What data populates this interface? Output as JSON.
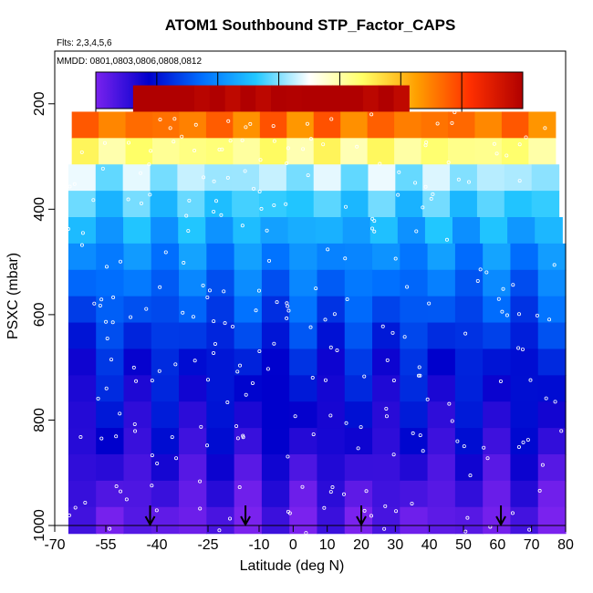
{
  "chart_data": {
    "type": "heatmap",
    "title": "ATOM1 Southbound STP_Factor_CAPS",
    "notes": [
      "Flts: 2,3,4,5,6",
      "MMDD: 0801,0803,0806,0808,0812"
    ],
    "xlabel": "Latitude (deg N)",
    "ylabel": "PSXC (mbar)",
    "xlim": [
      -70,
      80
    ],
    "ylim": [
      1000,
      100
    ],
    "x_ticks": [
      -70,
      -55,
      -40,
      -25,
      -10,
      0,
      10,
      20,
      30,
      40,
      50,
      60,
      70,
      80
    ],
    "y_ticks": [
      200,
      400,
      600,
      800,
      1000
    ],
    "colorbar": {
      "range": [
        1.0,
        4.0
      ],
      "ticks": [
        "1.0",
        "1.5",
        "2.0",
        "2.5",
        "3.0",
        "3.5",
        "4.0"
      ],
      "colors": [
        "#7a22ee",
        "#0000cc",
        "#0070ff",
        "#22c8ff",
        "#ffffff",
        "#ffff66",
        "#ffa000",
        "#ff3000",
        "#b00000"
      ]
    },
    "pressure_levels": [
      {
        "p": 190,
        "value": 4.05,
        "lat_min": -47,
        "lat_max": 34
      },
      {
        "p": 240,
        "value": 3.4,
        "lat_min": -65,
        "lat_max": 77
      },
      {
        "p": 290,
        "value": 2.8,
        "lat_min": -65,
        "lat_max": 77
      },
      {
        "p": 340,
        "value": 2.35,
        "lat_min": -66,
        "lat_max": 78
      },
      {
        "p": 390,
        "value": 2.15,
        "lat_min": -66,
        "lat_max": 78
      },
      {
        "p": 440,
        "value": 2.0,
        "lat_min": -66,
        "lat_max": 79
      },
      {
        "p": 490,
        "value": 1.85,
        "lat_min": -66,
        "lat_max": 80
      },
      {
        "p": 540,
        "value": 1.75,
        "lat_min": -66,
        "lat_max": 80
      },
      {
        "p": 590,
        "value": 1.65,
        "lat_min": -66,
        "lat_max": 80
      },
      {
        "p": 640,
        "value": 1.55,
        "lat_min": -66,
        "lat_max": 80
      },
      {
        "p": 690,
        "value": 1.45,
        "lat_min": -66,
        "lat_max": 80
      },
      {
        "p": 740,
        "value": 1.4,
        "lat_min": -66,
        "lat_max": 80
      },
      {
        "p": 790,
        "value": 1.35,
        "lat_min": -66,
        "lat_max": 80
      },
      {
        "p": 840,
        "value": 1.3,
        "lat_min": -66,
        "lat_max": 80
      },
      {
        "p": 890,
        "value": 1.22,
        "lat_min": -66,
        "lat_max": 80
      },
      {
        "p": 940,
        "value": 1.15,
        "lat_min": -66,
        "lat_max": 80
      },
      {
        "p": 990,
        "value": 1.08,
        "lat_min": -66,
        "lat_max": 80
      }
    ],
    "flight_profile_markers_lat": [
      -42,
      -14,
      20,
      61
    ]
  }
}
